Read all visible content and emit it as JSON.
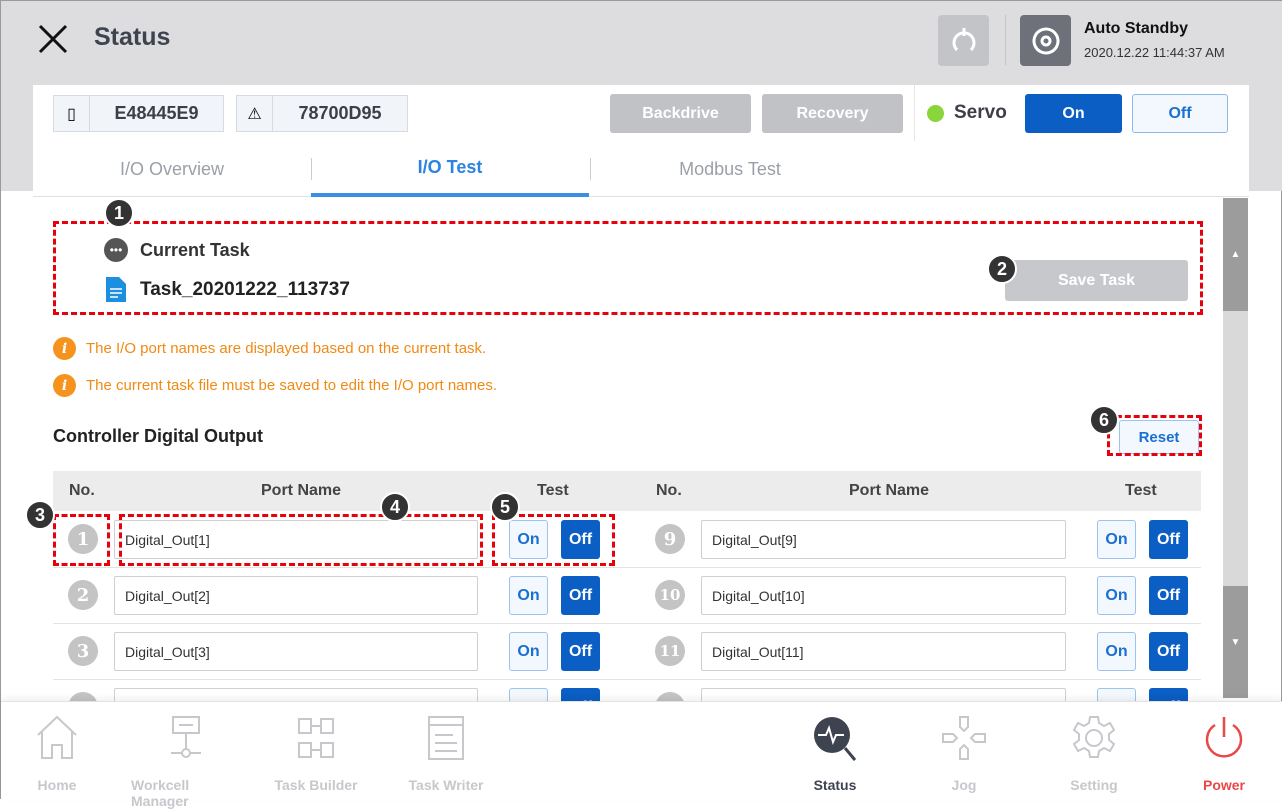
{
  "header": {
    "title": "Status",
    "mode": "Auto Standby",
    "datetime": "2020.12.22 11:44:37 AM"
  },
  "toolbar": {
    "controller_id": "E48445E9",
    "robot_id": "78700D95",
    "backdrive": "Backdrive",
    "recovery": "Recovery",
    "servo_label": "Servo",
    "servo_on": "On",
    "servo_off": "Off",
    "servo_status_color": "#8ad53a"
  },
  "tabs": [
    {
      "label": "I/O Overview"
    },
    {
      "label": "I/O Test",
      "active": true
    },
    {
      "label": "Modbus Test"
    }
  ],
  "task": {
    "label": "Current Task",
    "name": "Task_20201222_113737",
    "save": "Save Task"
  },
  "notices": [
    "The I/O port names are displayed based on the current task.",
    "The current task file must be saved to edit the I/O port names."
  ],
  "section": {
    "title": "Controller Digital Output",
    "reset": "Reset"
  },
  "table": {
    "headers": {
      "no": "No.",
      "port": "Port Name",
      "test": "Test"
    },
    "on": "On",
    "off": "Off",
    "rows": [
      {
        "left": {
          "no": "1",
          "name": "Digital_Out[1]"
        },
        "right": {
          "no": "9",
          "name": "Digital_Out[9]"
        }
      },
      {
        "left": {
          "no": "2",
          "name": "Digital_Out[2]"
        },
        "right": {
          "no": "10",
          "name": "Digital_Out[10]"
        }
      },
      {
        "left": {
          "no": "3",
          "name": "Digital_Out[3]"
        },
        "right": {
          "no": "11",
          "name": "Digital_Out[11]"
        }
      },
      {
        "left": {
          "no": "",
          "name": ""
        },
        "right": {
          "no": "",
          "name": ""
        }
      }
    ]
  },
  "annotations": [
    "1",
    "2",
    "3",
    "4",
    "5",
    "6"
  ],
  "nav": [
    {
      "label": "Home",
      "icon": "home-icon"
    },
    {
      "label": "Workcell Manager",
      "icon": "workcell-icon"
    },
    {
      "label": "Task Builder",
      "icon": "task-builder-icon"
    },
    {
      "label": "Task Writer",
      "icon": "task-writer-icon"
    },
    {
      "label": "Status",
      "icon": "status-icon",
      "active": true
    },
    {
      "label": "Jog",
      "icon": "jog-icon"
    },
    {
      "label": "Setting",
      "icon": "gear-icon"
    },
    {
      "label": "Power",
      "icon": "power-icon",
      "color": "#e84848"
    }
  ]
}
